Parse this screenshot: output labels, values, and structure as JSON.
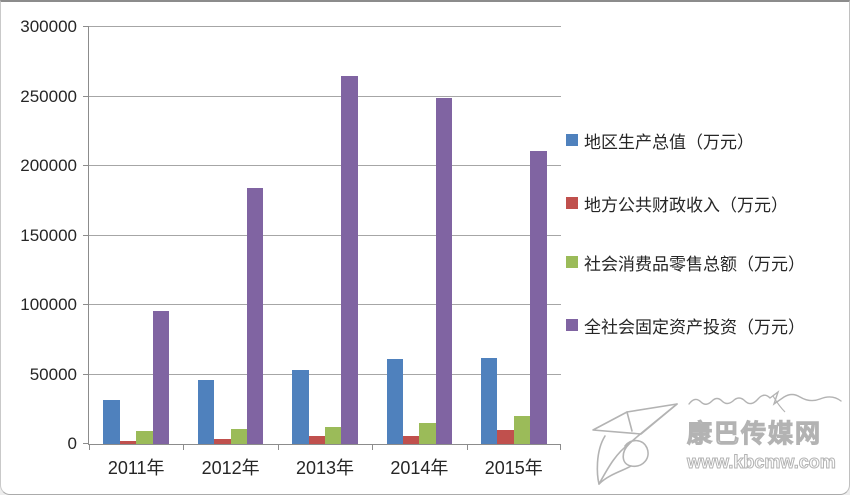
{
  "chart_data": {
    "type": "bar",
    "title": "",
    "xlabel": "",
    "ylabel": "",
    "categories": [
      "2011年",
      "2012年",
      "2013年",
      "2014年",
      "2015年"
    ],
    "series": [
      {
        "name": "地区生产总值（万元）",
        "color": "#4F81BD",
        "values": [
          32000,
          46000,
          53000,
          61000,
          62000
        ]
      },
      {
        "name": "地方公共财政收入（万元）",
        "color": "#C0504D",
        "values": [
          2500,
          3500,
          5500,
          6000,
          10000
        ]
      },
      {
        "name": "社会消费品零售总额（万元）",
        "color": "#9BBB59",
        "values": [
          9500,
          11000,
          12500,
          15000,
          20000
        ]
      },
      {
        "name": "全社会固定资产投资（万元）",
        "color": "#8064A2",
        "values": [
          96000,
          184000,
          265000,
          249000,
          211000
        ]
      }
    ],
    "ylim": [
      0,
      300000
    ],
    "ytick_step": 50000,
    "ytick_labels": [
      "0",
      "50000",
      "100000",
      "150000",
      "200000",
      "250000",
      "300000"
    ],
    "grid": true,
    "legend_position": "right"
  },
  "legend": {
    "items": [
      {
        "label": "地区生产总值（万元）",
        "color": "#4F81BD"
      },
      {
        "label": "地方公共财政收入（万元）",
        "color": "#C0504D"
      },
      {
        "label": "社会消费品零售总额（万元）",
        "color": "#9BBB59"
      },
      {
        "label": "全社会固定资产投资（万元）",
        "color": "#8064A2"
      }
    ]
  },
  "watermark": {
    "title": "康巴传媒网",
    "url": "www.kbcmw.com"
  },
  "colors": {
    "series_blue": "#4F81BD",
    "series_red": "#C0504D",
    "series_green": "#9BBB59",
    "series_purple": "#8064A2",
    "gridline": "#A6A6A6",
    "axis": "#8C8C8C",
    "text": "#262626",
    "watermark": "#9A9A9A"
  }
}
